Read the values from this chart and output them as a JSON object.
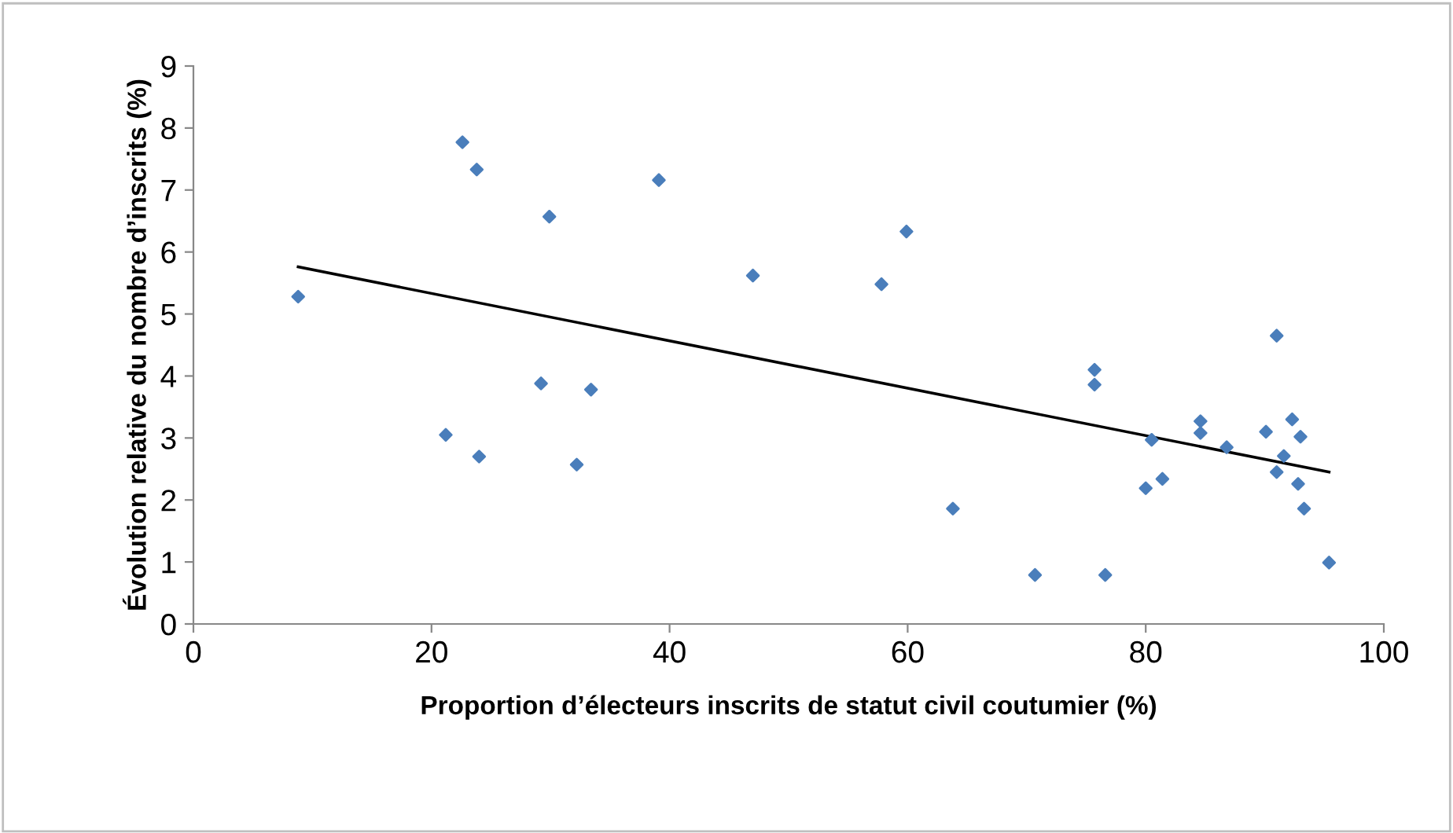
{
  "chart_data": {
    "type": "scatter",
    "xlabel": "Proportion d’électeurs inscrits de statut civil coutumier (%)",
    "ylabel": "Évolution relative du nombre d’inscrits (%)",
    "xlim": [
      0,
      100
    ],
    "ylim": [
      0,
      9
    ],
    "xticks": [
      0,
      20,
      40,
      60,
      80,
      100
    ],
    "yticks": [
      0,
      1,
      2,
      3,
      4,
      5,
      6,
      7,
      8,
      9
    ],
    "grid": false,
    "legend": false,
    "marker": "diamond",
    "series": [
      {
        "color": "#4a7ebb",
        "x": [
          8.8,
          21.2,
          22.6,
          23.8,
          24.0,
          29.2,
          29.9,
          32.2,
          33.4,
          39.1,
          47.0,
          57.8,
          59.9,
          63.8,
          70.7,
          75.7,
          75.7,
          76.6,
          80.0,
          80.5,
          81.4,
          84.6,
          84.6,
          86.8,
          90.1,
          91.0,
          91.0,
          91.6,
          92.3,
          92.8,
          93.0,
          93.3,
          95.4
        ],
        "values": [
          5.28,
          3.05,
          7.77,
          7.33,
          2.7,
          3.88,
          6.57,
          2.57,
          3.78,
          7.16,
          5.62,
          5.48,
          6.33,
          1.86,
          0.79,
          4.1,
          3.86,
          0.79,
          2.19,
          2.97,
          2.34,
          3.27,
          3.08,
          2.85,
          3.1,
          4.65,
          2.45,
          2.71,
          3.3,
          2.26,
          3.02,
          1.86,
          0.99
        ]
      },
      {
        "type": "line",
        "color": "#000000",
        "marker": "none",
        "line_style": "solid",
        "x": [
          8.8,
          95.4
        ],
        "values": [
          5.76,
          2.45
        ]
      }
    ]
  }
}
